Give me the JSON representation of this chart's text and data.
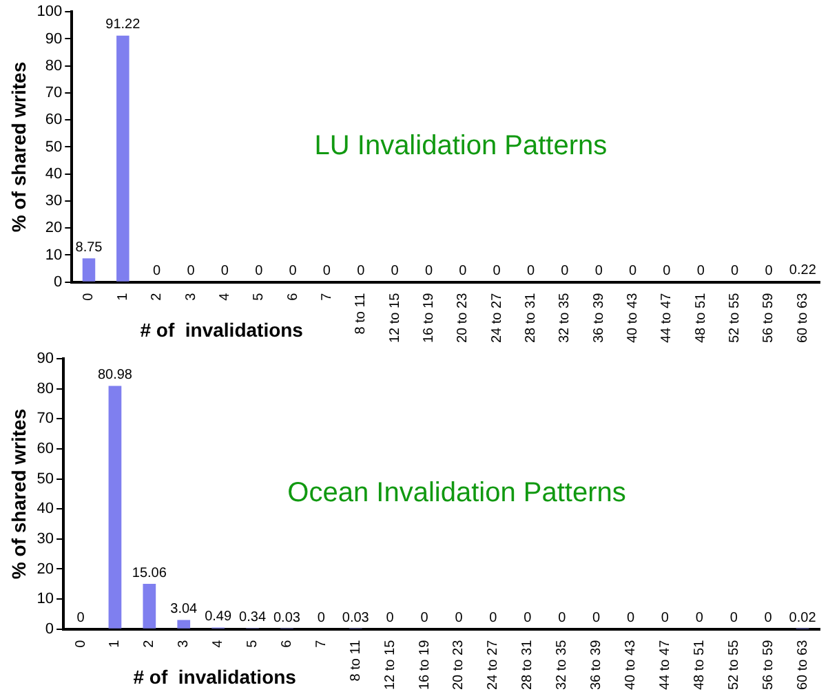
{
  "chart_data": [
    {
      "type": "bar",
      "title": "LU Invalidation Patterns",
      "xlabel": "# of  invalidations",
      "ylabel": "% of shared writes",
      "categories": [
        "0",
        "1",
        "2",
        "3",
        "4",
        "5",
        "6",
        "7",
        "8 to 11",
        "12 to 15",
        "16 to 19",
        "20 to 23",
        "24 to 27",
        "28 to 31",
        "32 to 35",
        "36 to 39",
        "40 to 43",
        "44 to 47",
        "48 to 51",
        "52 to 55",
        "56 to 59",
        "60 to 63"
      ],
      "values": [
        8.75,
        91.22,
        0,
        0,
        0,
        0,
        0,
        0,
        0,
        0,
        0,
        0,
        0,
        0,
        0,
        0,
        0,
        0,
        0,
        0,
        0,
        0.22
      ],
      "color": "#7f7fef",
      "ylim": [
        0,
        100
      ],
      "yticks": [
        0,
        10,
        20,
        30,
        40,
        50,
        60,
        70,
        80,
        90,
        100
      ],
      "grid": false,
      "legend": false,
      "data_labels": true
    },
    {
      "type": "bar",
      "title": "Ocean Invalidation Patterns",
      "xlabel": "# of  invalidations",
      "ylabel": "% of shared writes",
      "categories": [
        "0",
        "1",
        "2",
        "3",
        "4",
        "5",
        "6",
        "7",
        "8 to 11",
        "12 to 15",
        "16 to 19",
        "20 to 23",
        "24 to 27",
        "28 to 31",
        "32 to 35",
        "36 to 39",
        "40 to 43",
        "44 to 47",
        "48 to 51",
        "52 to 55",
        "56 to 59",
        "60 to 63"
      ],
      "values": [
        0,
        80.98,
        15.06,
        3.04,
        0.49,
        0.34,
        0.03,
        0,
        0.03,
        0,
        0,
        0,
        0,
        0,
        0,
        0,
        0,
        0,
        0,
        0,
        0,
        0.02
      ],
      "color": "#7f7fef",
      "ylim": [
        0,
        90
      ],
      "yticks": [
        0,
        10,
        20,
        30,
        40,
        50,
        60,
        70,
        80,
        90
      ],
      "grid": false,
      "legend": false,
      "data_labels": true
    }
  ]
}
